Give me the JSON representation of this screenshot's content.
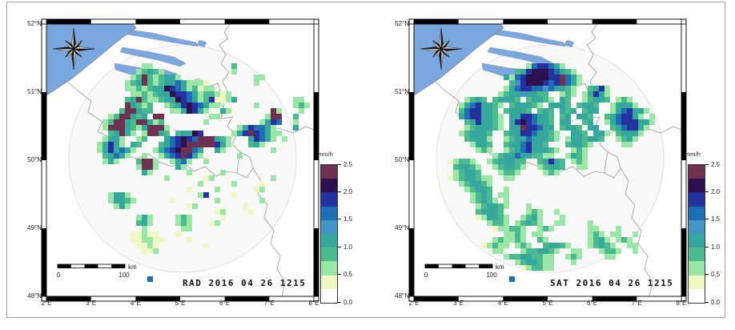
{
  "panels": [
    {
      "id": "rad",
      "label": "RAD 2016 04 26 1215"
    },
    {
      "id": "sat",
      "label": "SAT 2016 04 26 1215"
    }
  ],
  "axes": {
    "lat": [
      "52°N",
      "51°N",
      "50°N",
      "49°N",
      "48°N"
    ],
    "lon": [
      "2°E",
      "3°E",
      "4°E",
      "5°E",
      "6°E",
      "7°E",
      "8°E"
    ]
  },
  "scalebar": {
    "start": "0",
    "end": "100",
    "unit": "km"
  },
  "colorbar": {
    "title": "mm/h",
    "ticks": [
      "2.5",
      "2.0",
      "1.5",
      "1.0",
      "0.5",
      "0.0"
    ],
    "unit_min": 0.0,
    "unit_max": 2.5,
    "colors_bottom_to_top": [
      "#ffffff",
      "#eff8c2",
      "#9ae6a7",
      "#4cba8e",
      "#35a79c",
      "#4495c5",
      "#1f6eb3",
      "#24319f",
      "#2d104e",
      "#6e3150"
    ]
  },
  "palette": {
    "1": "#eff8c2",
    "2": "#9ae6a7",
    "3": "#4cba8e",
    "4": "#35a79c",
    "5": "#4495c5",
    "6": "#1f6eb3",
    "7": "#24319f",
    "8": "#2d104e",
    "9": "#6e3150"
  },
  "colors": {
    "sea": "#7ba7e0",
    "border_line": "#999999",
    "coast_line": "#8a8a8a",
    "coverage_circle_fill": "#f4f4f2",
    "coverage_circle_stroke": "#e0e0de",
    "frame": "#000000",
    "label_text": "#111111",
    "tick_text": "#222222"
  },
  "rasters": {
    "rad": [
      [
        7,
        17,
        "22"
      ],
      [
        7,
        33,
        "3"
      ],
      [
        8,
        16,
        "23432"
      ],
      [
        8,
        33,
        "2"
      ],
      [
        9,
        15,
        "239323442"
      ],
      [
        9,
        37,
        "22"
      ],
      [
        10,
        14,
        "234932344642221"
      ],
      [
        10,
        37,
        "2"
      ],
      [
        11,
        14,
        "2232344876423122"
      ],
      [
        12,
        15,
        "223234487764233212"
      ],
      [
        13,
        14,
        "34932234487642371124"
      ],
      [
        13,
        44,
        "22"
      ],
      [
        14,
        14,
        "94323"
      ],
      [
        14,
        21,
        "2347876422"
      ],
      [
        14,
        37,
        "2"
      ],
      [
        14,
        44,
        "232"
      ],
      [
        15,
        13,
        "399433"
      ],
      [
        15,
        22,
        "2248742"
      ],
      [
        15,
        31,
        "42"
      ],
      [
        15,
        40,
        "92"
      ],
      [
        15,
        45,
        "2"
      ],
      [
        16,
        11,
        "2399434"
      ],
      [
        16,
        19,
        "99"
      ],
      [
        16,
        29,
        "22"
      ],
      [
        16,
        39,
        "299"
      ],
      [
        16,
        44,
        "3"
      ],
      [
        17,
        10,
        "23994399423"
      ],
      [
        17,
        28,
        "2"
      ],
      [
        17,
        38,
        "2476"
      ],
      [
        17,
        44,
        "2"
      ],
      [
        18,
        10,
        "2999432"
      ],
      [
        18,
        17,
        "49992"
      ],
      [
        18,
        34,
        "2476642"
      ],
      [
        18,
        44,
        "4"
      ],
      [
        19,
        11,
        "34942"
      ],
      [
        19,
        17,
        "29943"
      ],
      [
        19,
        23,
        "34487"
      ],
      [
        19,
        33,
        "247976422"
      ],
      [
        20,
        10,
        "2442"
      ],
      [
        20,
        16,
        "23"
      ],
      [
        20,
        21,
        "467876999432"
      ],
      [
        20,
        36,
        "47642"
      ],
      [
        20,
        42,
        "2"
      ],
      [
        21,
        9,
        "24742"
      ],
      [
        21,
        15,
        "43"
      ],
      [
        21,
        20,
        "3467899999742"
      ],
      [
        21,
        36,
        "342"
      ],
      [
        22,
        9,
        "2474642"
      ],
      [
        22,
        19,
        "246789964"
      ],
      [
        22,
        30,
        "42"
      ],
      [
        22,
        40,
        "2"
      ],
      [
        23,
        10,
        "34642"
      ],
      [
        23,
        17,
        "2"
      ],
      [
        23,
        20,
        "24679742"
      ],
      [
        23,
        34,
        "2"
      ],
      [
        24,
        10,
        "242"
      ],
      [
        24,
        16,
        "3992"
      ],
      [
        24,
        22,
        "2462"
      ],
      [
        24,
        28,
        "2"
      ],
      [
        25,
        16,
        "2992"
      ],
      [
        25,
        23,
        "42"
      ],
      [
        26,
        17,
        "42"
      ],
      [
        26,
        25,
        "2"
      ],
      [
        26,
        31,
        "2"
      ],
      [
        27,
        21,
        "2"
      ],
      [
        27,
        28,
        "12"
      ],
      [
        27,
        40,
        "2"
      ],
      [
        28,
        27,
        "2"
      ],
      [
        28,
        33,
        "2"
      ],
      [
        28,
        38,
        "1"
      ],
      [
        29,
        25,
        "1"
      ],
      [
        29,
        30,
        "2"
      ],
      [
        29,
        37,
        "12"
      ],
      [
        30,
        11,
        "2442"
      ],
      [
        30,
        27,
        "27"
      ],
      [
        30,
        33,
        "1"
      ],
      [
        31,
        11,
        "24432"
      ],
      [
        31,
        22,
        "1"
      ],
      [
        31,
        30,
        "2"
      ],
      [
        31,
        38,
        "2"
      ],
      [
        32,
        12,
        "242"
      ],
      [
        32,
        25,
        "12"
      ],
      [
        32,
        35,
        "1"
      ],
      [
        33,
        30,
        "12"
      ],
      [
        33,
        36,
        "1"
      ],
      [
        34,
        16,
        "242"
      ],
      [
        34,
        23,
        "232"
      ],
      [
        34,
        31,
        "1"
      ],
      [
        35,
        16,
        "342"
      ],
      [
        35,
        23,
        "232"
      ],
      [
        35,
        29,
        "12"
      ],
      [
        36,
        17,
        "2"
      ],
      [
        36,
        24,
        "22"
      ],
      [
        37,
        15,
        "11211"
      ],
      [
        37,
        23,
        "1"
      ],
      [
        38,
        15,
        "112211"
      ],
      [
        38,
        25,
        "1"
      ],
      [
        39,
        16,
        "1121"
      ],
      [
        39,
        28,
        "1"
      ],
      [
        40,
        17,
        "112"
      ],
      [
        45,
        18,
        "6"
      ]
    ],
    "sat": [
      [
        7,
        20,
        "2677642"
      ],
      [
        8,
        18,
        "34788876432"
      ],
      [
        9,
        16,
        "42678888779642"
      ],
      [
        10,
        17,
        "3578887679642"
      ],
      [
        11,
        16,
        "2467766564432"
      ],
      [
        11,
        31,
        "3472"
      ],
      [
        12,
        15,
        "234454433"
      ],
      [
        12,
        26,
        "232"
      ],
      [
        12,
        30,
        "24742"
      ],
      [
        13,
        9,
        "2343"
      ],
      [
        13,
        14,
        "34443"
      ],
      [
        13,
        20,
        "34432"
      ],
      [
        13,
        26,
        "43"
      ],
      [
        13,
        30,
        "23443"
      ],
      [
        13,
        36,
        "232"
      ],
      [
        14,
        8,
        "24674432"
      ],
      [
        14,
        17,
        "344432"
      ],
      [
        14,
        24,
        "4443"
      ],
      [
        14,
        29,
        "3443"
      ],
      [
        14,
        35,
        "24442"
      ],
      [
        15,
        8,
        "3677443"
      ],
      [
        15,
        16,
        "34443"
      ],
      [
        15,
        22,
        "343"
      ],
      [
        15,
        26,
        "434"
      ],
      [
        15,
        30,
        "344"
      ],
      [
        15,
        35,
        "2467442"
      ],
      [
        16,
        8,
        "46774432"
      ],
      [
        16,
        17,
        "44776443"
      ],
      [
        16,
        26,
        "34"
      ],
      [
        16,
        29,
        "443"
      ],
      [
        16,
        34,
        "3467742"
      ],
      [
        16,
        42,
        "2"
      ],
      [
        17,
        9,
        "3474432"
      ],
      [
        17,
        17,
        "47876443"
      ],
      [
        17,
        26,
        "44"
      ],
      [
        17,
        30,
        "34"
      ],
      [
        17,
        34,
        "246777442"
      ],
      [
        18,
        9,
        "2344432"
      ],
      [
        18,
        17,
        "44977644"
      ],
      [
        18,
        26,
        "3443"
      ],
      [
        18,
        31,
        "44"
      ],
      [
        18,
        35,
        "3467742"
      ],
      [
        19,
        8,
        "234443"
      ],
      [
        19,
        16,
        "3447764432"
      ],
      [
        19,
        28,
        "443"
      ],
      [
        19,
        32,
        "442"
      ],
      [
        19,
        36,
        "34442"
      ],
      [
        20,
        9,
        "34442"
      ],
      [
        20,
        16,
        "2344644432"
      ],
      [
        20,
        27,
        "2443443"
      ],
      [
        20,
        36,
        "2342"
      ],
      [
        21,
        10,
        "2443"
      ],
      [
        21,
        16,
        "34467443"
      ],
      [
        21,
        27,
        "34432"
      ],
      [
        21,
        37,
        "22"
      ],
      [
        22,
        11,
        "232"
      ],
      [
        22,
        16,
        "2346744432"
      ],
      [
        22,
        28,
        "232"
      ],
      [
        23,
        14,
        "23446443322"
      ],
      [
        23,
        27,
        "2432"
      ],
      [
        24,
        6,
        "1"
      ],
      [
        24,
        7,
        "2332"
      ],
      [
        24,
        13,
        "2344433"
      ],
      [
        24,
        22,
        "34743"
      ],
      [
        24,
        28,
        "232"
      ],
      [
        25,
        7,
        "34432"
      ],
      [
        25,
        14,
        "234432"
      ],
      [
        25,
        22,
        "23443"
      ],
      [
        25,
        29,
        "22"
      ],
      [
        26,
        7,
        "23443"
      ],
      [
        26,
        15,
        "2332"
      ],
      [
        26,
        23,
        "232"
      ],
      [
        27,
        6,
        "1"
      ],
      [
        27,
        7,
        "2344322"
      ],
      [
        27,
        16,
        "22"
      ],
      [
        28,
        8,
        "234432"
      ],
      [
        29,
        9,
        "23443"
      ],
      [
        29,
        16,
        "2"
      ],
      [
        30,
        10,
        "2343"
      ],
      [
        30,
        15,
        "22"
      ],
      [
        31,
        10,
        "23432"
      ],
      [
        31,
        16,
        "2"
      ],
      [
        32,
        11,
        "234432"
      ],
      [
        32,
        20,
        "2"
      ],
      [
        33,
        11,
        "34443"
      ],
      [
        33,
        20,
        "232"
      ],
      [
        33,
        25,
        "2"
      ],
      [
        34,
        11,
        "1"
      ],
      [
        34,
        12,
        "24432"
      ],
      [
        34,
        19,
        "2342"
      ],
      [
        34,
        26,
        "2"
      ],
      [
        35,
        13,
        "2332"
      ],
      [
        35,
        18,
        "23432"
      ],
      [
        35,
        25,
        "22"
      ],
      [
        35,
        31,
        "2"
      ],
      [
        36,
        14,
        "1"
      ],
      [
        36,
        15,
        "22332"
      ],
      [
        36,
        22,
        "232"
      ],
      [
        36,
        31,
        "22"
      ],
      [
        36,
        36,
        "2"
      ],
      [
        37,
        16,
        "2232"
      ],
      [
        37,
        21,
        "22"
      ],
      [
        37,
        31,
        "232"
      ],
      [
        37,
        35,
        "22"
      ],
      [
        37,
        39,
        "2"
      ],
      [
        38,
        14,
        "232232"
      ],
      [
        38,
        22,
        "32"
      ],
      [
        38,
        31,
        "2342"
      ],
      [
        38,
        36,
        "232"
      ],
      [
        39,
        12,
        "1"
      ],
      [
        39,
        13,
        "2322"
      ],
      [
        39,
        18,
        "232"
      ],
      [
        39,
        23,
        "34432"
      ],
      [
        39,
        31,
        "23432"
      ],
      [
        39,
        38,
        "22"
      ],
      [
        40,
        14,
        "22"
      ],
      [
        40,
        19,
        "2334432"
      ],
      [
        40,
        28,
        "22"
      ],
      [
        40,
        33,
        "2332"
      ],
      [
        40,
        39,
        "2"
      ],
      [
        41,
        16,
        "233443322"
      ],
      [
        41,
        27,
        "232"
      ],
      [
        41,
        34,
        "22"
      ],
      [
        42,
        18,
        "2344322"
      ],
      [
        42,
        28,
        "2"
      ],
      [
        43,
        19,
        "1"
      ],
      [
        43,
        20,
        "23322"
      ],
      [
        45,
        17,
        "6"
      ]
    ]
  }
}
